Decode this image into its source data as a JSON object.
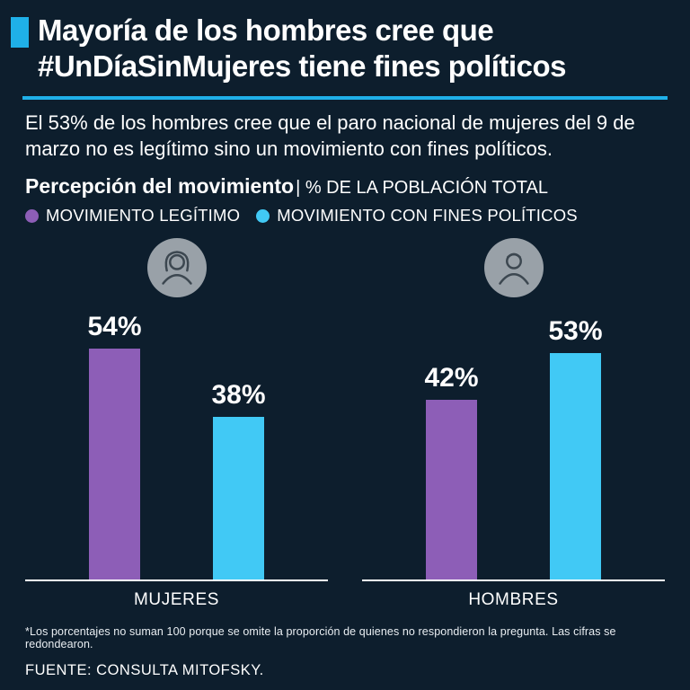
{
  "colors": {
    "background": "#0d1e2d",
    "accent_cyan": "#1fb0e8",
    "bar_purple": "#8d5eb7",
    "bar_cyan": "#41c9f5",
    "avatar_gray": "#99a1a8"
  },
  "header": {
    "title": "Mayoría de los hombres cree que #UnDíaSinMujeres tiene fines políticos"
  },
  "subtitle": "El 53% de los hombres cree que el paro nacional de mujeres del 9 de marzo no es legítimo sino un movimiento con fines políticos.",
  "chart_data": {
    "type": "bar",
    "title": "Percepción del movimiento",
    "subtitle": "| % DE LA POBLACIÓN TOTAL",
    "legend": [
      {
        "label": "MOVIMIENTO LEGÍTIMO",
        "color": "#8d5eb7"
      },
      {
        "label": "MOVIMIENTO CON FINES POLÍTICOS",
        "color": "#41c9f5"
      }
    ],
    "categories": [
      "MUJERES",
      "HOMBRES"
    ],
    "series": [
      {
        "name": "MOVIMIENTO LEGÍTIMO",
        "values": [
          54,
          42
        ]
      },
      {
        "name": "MOVIMIENTO CON FINES POLÍTICOS",
        "values": [
          38,
          53
        ]
      }
    ],
    "value_labels": [
      [
        "54%",
        "42%"
      ],
      [
        "38%",
        "53%"
      ]
    ],
    "ylim": [
      0,
      60
    ],
    "grid": false,
    "legend_position": "top"
  },
  "footnote": "*Los porcentajes no suman 100 porque se omite la proporción de quienes no respondieron la pregunta. Las cifras se redondearon.",
  "source": "FUENTE: CONSULTA MITOFSKY."
}
